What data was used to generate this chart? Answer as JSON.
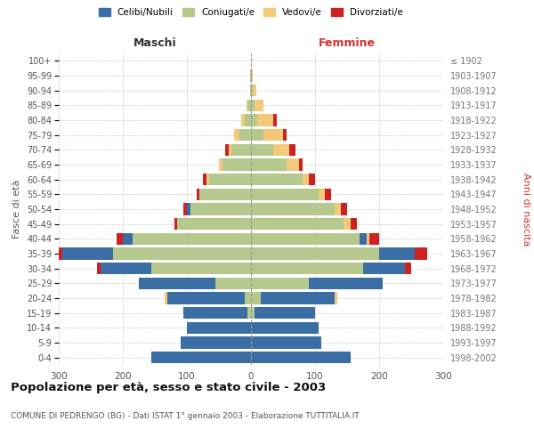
{
  "age_groups": [
    "0-4",
    "5-9",
    "10-14",
    "15-19",
    "20-24",
    "25-29",
    "30-34",
    "35-39",
    "40-44",
    "45-49",
    "50-54",
    "55-59",
    "60-64",
    "65-69",
    "70-74",
    "75-79",
    "80-84",
    "85-89",
    "90-94",
    "95-99",
    "100+"
  ],
  "birth_years": [
    "1998-2002",
    "1993-1997",
    "1988-1992",
    "1983-1987",
    "1978-1982",
    "1973-1977",
    "1968-1972",
    "1963-1967",
    "1958-1962",
    "1953-1957",
    "1948-1952",
    "1943-1947",
    "1938-1942",
    "1933-1937",
    "1928-1932",
    "1923-1927",
    "1918-1922",
    "1913-1917",
    "1908-1912",
    "1903-1907",
    "≤ 1902"
  ],
  "males": {
    "celibe": [
      155,
      110,
      100,
      100,
      120,
      120,
      80,
      80,
      15,
      0,
      5,
      0,
      0,
      0,
      0,
      0,
      0,
      0,
      0,
      0,
      0
    ],
    "coniugato": [
      0,
      0,
      0,
      5,
      10,
      55,
      155,
      215,
      185,
      115,
      95,
      80,
      65,
      45,
      30,
      18,
      10,
      5,
      2,
      1,
      0
    ],
    "vedovo": [
      0,
      0,
      0,
      0,
      5,
      0,
      0,
      0,
      0,
      0,
      0,
      0,
      5,
      5,
      5,
      8,
      5,
      2,
      0,
      0,
      0
    ],
    "divorziato": [
      0,
      0,
      0,
      0,
      0,
      0,
      5,
      10,
      10,
      5,
      5,
      5,
      5,
      0,
      5,
      0,
      0,
      0,
      0,
      0,
      0
    ]
  },
  "females": {
    "nubile": [
      155,
      110,
      105,
      95,
      115,
      115,
      65,
      55,
      10,
      0,
      0,
      0,
      0,
      0,
      0,
      0,
      0,
      0,
      0,
      0,
      0
    ],
    "coniugata": [
      0,
      0,
      0,
      5,
      15,
      90,
      175,
      200,
      170,
      145,
      130,
      105,
      80,
      55,
      35,
      20,
      10,
      5,
      3,
      1,
      0
    ],
    "vedova": [
      0,
      0,
      0,
      0,
      5,
      0,
      0,
      0,
      5,
      10,
      10,
      10,
      10,
      20,
      25,
      30,
      25,
      15,
      5,
      2,
      0
    ],
    "divorziata": [
      0,
      0,
      0,
      0,
      0,
      0,
      10,
      20,
      15,
      10,
      10,
      10,
      10,
      5,
      10,
      5,
      5,
      0,
      0,
      0,
      0
    ]
  },
  "colors": {
    "celibe": "#3a6ea5",
    "coniugato": "#b5c98e",
    "vedovo": "#f5c97a",
    "divorziato": "#cc2222"
  },
  "xlim": 300,
  "title": "Popolazione per età, sesso e stato civile - 2003",
  "subtitle": "COMUNE DI PEDRENGO (BG) - Dati ISTAT 1° gennaio 2003 - Elaborazione TUTTITALIA.IT",
  "ylabel_left": "Fasce di età",
  "ylabel_right": "Anni di nascita",
  "xlabel_left": "Maschi",
  "xlabel_right": "Femmine",
  "legend_labels": [
    "Celibi/Nubili",
    "Coniugati/e",
    "Vedovi/e",
    "Divorziati/e"
  ],
  "background_color": "#ffffff",
  "grid_color": "#cccccc",
  "xtick_vals": [
    300,
    200,
    100,
    0,
    100,
    200,
    300
  ]
}
